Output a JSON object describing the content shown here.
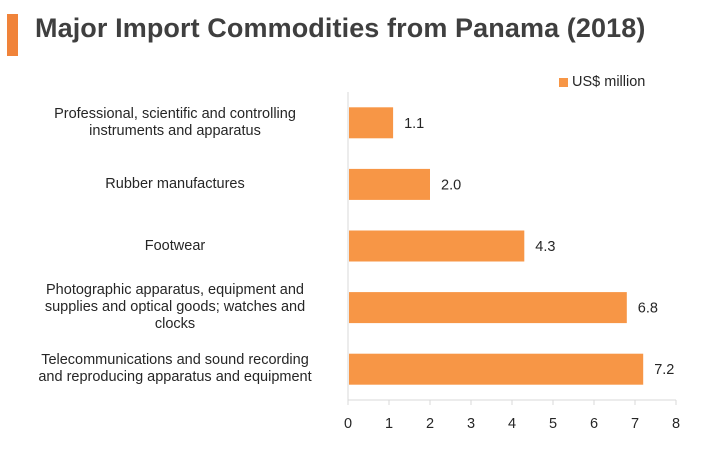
{
  "title": "Major Import Commodities from Panama (2018)",
  "colors": {
    "accent": "#f0833a",
    "bar": "#f79646",
    "axis": "#d9d9d9",
    "text": "#262626"
  },
  "chart_data": {
    "type": "bar",
    "orientation": "horizontal",
    "title": "Major Import Commodities from Panama (2018)",
    "categories": [
      "Professional, scientific and controlling instruments and apparatus",
      "Rubber manufactures",
      "Footwear",
      "Photographic apparatus, equipment and supplies and optical goods; watches and clocks",
      "Telecommunications and sound recording and reproducing apparatus and equipment"
    ],
    "series": [
      {
        "name": "US$ million",
        "values": [
          1.1,
          2.0,
          4.3,
          6.8,
          7.2
        ]
      }
    ],
    "value_labels": [
      "1.1",
      "2.0",
      "4.3",
      "6.8",
      "7.2"
    ],
    "xlim": [
      0,
      8
    ],
    "xticks": [
      0,
      1,
      2,
      3,
      4,
      5,
      6,
      7,
      8
    ],
    "xlabel": "",
    "ylabel": "",
    "grid": false,
    "legend_position": "top-right"
  },
  "category_lines": [
    [
      "Professional, scientific and controlling",
      "instruments and apparatus"
    ],
    [
      "Rubber manufactures"
    ],
    [
      "Footwear"
    ],
    [
      "Photographic apparatus, equipment and",
      "supplies and optical goods; watches and",
      "clocks"
    ],
    [
      "Telecommunications and sound recording",
      "and reproducing apparatus and equipment"
    ]
  ]
}
